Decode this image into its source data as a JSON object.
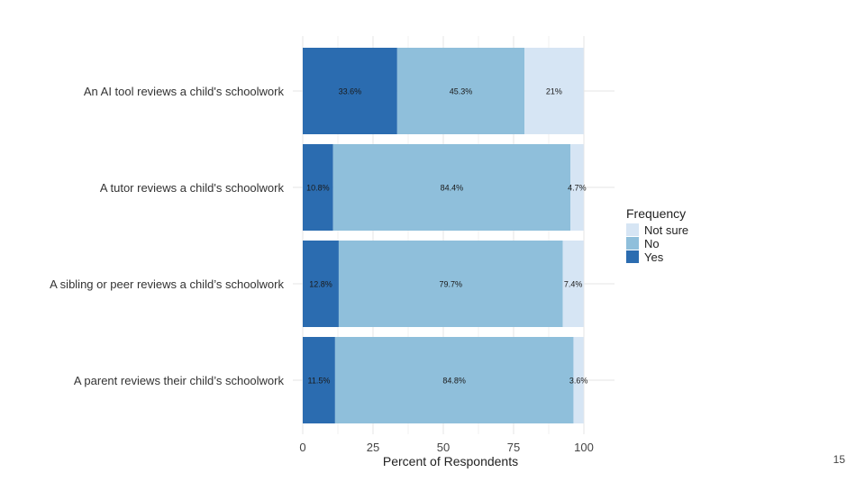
{
  "page_number": "15",
  "chart_data": {
    "type": "bar",
    "orientation": "horizontal",
    "stacked": true,
    "categories": [
      "An AI tool reviews a child's schoolwork",
      "A tutor reviews a child's schoolwork",
      "A sibling or peer reviews a child’s schoolwork",
      "A parent reviews their child’s schoolwork"
    ],
    "series": [
      {
        "name": "Yes",
        "color": "#2b6cb0",
        "values": [
          33.6,
          10.8,
          12.8,
          11.5
        ],
        "labels": [
          "33.6%",
          "10.8%",
          "12.8%",
          "11.5%"
        ]
      },
      {
        "name": "No",
        "color": "#8fbfdb",
        "values": [
          45.3,
          84.4,
          79.7,
          84.8
        ],
        "labels": [
          "45.3%",
          "84.4%",
          "79.7%",
          "84.8%"
        ]
      },
      {
        "name": "Not sure",
        "color": "#d6e5f4",
        "values": [
          21,
          4.7,
          7.4,
          3.6
        ],
        "labels": [
          "21%",
          "4.7%",
          "7.4%",
          "3.6%"
        ]
      }
    ],
    "xlabel": "Percent of Respondents",
    "ylabel": "",
    "xlim": [
      0,
      100
    ],
    "xticks": [
      "0",
      "25",
      "50",
      "75",
      "100"
    ],
    "legend": {
      "title": "Frequency",
      "position": "right",
      "order": [
        "Not sure",
        "No",
        "Yes"
      ]
    },
    "grid": true
  }
}
